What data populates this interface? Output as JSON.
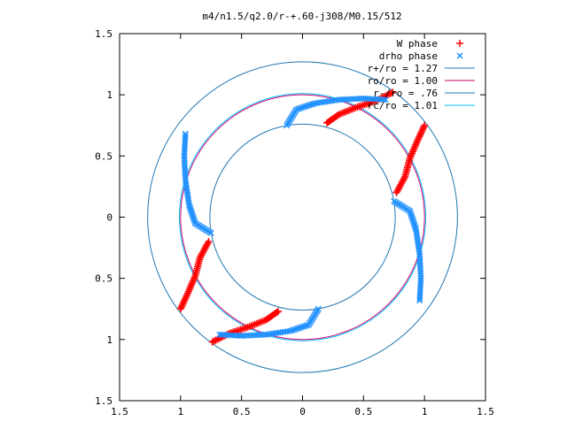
{
  "chart_data": {
    "type": "scatter",
    "title": "m4/n1.5/q2.0/r-+.60-j308/M0.15/512",
    "xlim": [
      -1.5,
      1.5
    ],
    "ylim": [
      -1.5,
      1.5
    ],
    "x_ticks": [
      -1.5,
      -1,
      -0.5,
      0,
      0.5,
      1,
      1.5
    ],
    "y_ticks": [
      -1.5,
      -1,
      -0.5,
      0,
      0.5,
      1,
      1.5
    ],
    "x_tick_labels": [
      "1.5",
      "1",
      "0.5",
      "0",
      "0.5",
      "1",
      "1.5"
    ],
    "y_tick_labels": [
      "1.5",
      "1",
      "0.5",
      "0",
      "0.5",
      "1",
      "1.5"
    ],
    "grid": false,
    "legend_position": "top-right",
    "colors": {
      "w_phase": "#ff0000",
      "drho_phase": "#1e90ff",
      "r_plus": "#1f77b4",
      "r_o": "#cc0066",
      "r_minus": "#1f77b4",
      "r_c": "#00bfff"
    },
    "series": [
      {
        "name": "W phase",
        "kind": "points",
        "marker": "+",
        "points": [
          [
            0.74,
            1.02
          ],
          [
            0.6,
            0.95
          ],
          [
            0.45,
            0.9
          ],
          [
            0.3,
            0.84
          ],
          [
            0.2,
            0.77
          ],
          [
            -0.74,
            -1.02
          ],
          [
            -0.6,
            -0.95
          ],
          [
            -0.45,
            -0.9
          ],
          [
            -0.3,
            -0.84
          ],
          [
            -0.2,
            -0.77
          ],
          [
            1.0,
            0.75
          ],
          [
            0.94,
            0.62
          ],
          [
            0.88,
            0.48
          ],
          [
            0.84,
            0.33
          ],
          [
            0.77,
            0.2
          ],
          [
            -1.0,
            -0.75
          ],
          [
            -0.94,
            -0.62
          ],
          [
            -0.88,
            -0.48
          ],
          [
            -0.84,
            -0.33
          ],
          [
            -0.77,
            -0.2
          ]
        ]
      },
      {
        "name": "drho phase",
        "kind": "points",
        "marker": "x",
        "points": [
          [
            -0.13,
            0.75
          ],
          [
            -0.05,
            0.88
          ],
          [
            0.1,
            0.93
          ],
          [
            0.3,
            0.96
          ],
          [
            0.5,
            0.97
          ],
          [
            0.68,
            0.96
          ],
          [
            0.13,
            -0.75
          ],
          [
            0.05,
            -0.88
          ],
          [
            -0.1,
            -0.93
          ],
          [
            -0.3,
            -0.96
          ],
          [
            -0.5,
            -0.97
          ],
          [
            -0.68,
            -0.96
          ],
          [
            0.75,
            0.13
          ],
          [
            0.88,
            0.05
          ],
          [
            0.93,
            -0.1
          ],
          [
            0.96,
            -0.3
          ],
          [
            0.97,
            -0.5
          ],
          [
            0.96,
            -0.68
          ],
          [
            -0.75,
            -0.13
          ],
          [
            -0.88,
            -0.05
          ],
          [
            -0.93,
            0.1
          ],
          [
            -0.96,
            0.3
          ],
          [
            -0.97,
            0.5
          ],
          [
            -0.96,
            0.68
          ]
        ]
      },
      {
        "name": "r+/ro = 1.27",
        "kind": "circle",
        "radius": 1.27
      },
      {
        "name": "ro/ro = 1.00",
        "kind": "circle",
        "radius": 1.0
      },
      {
        "name": "r-/ro = .76",
        "kind": "circle",
        "radius": 0.76
      },
      {
        "name": "rc/ro = 1.01",
        "kind": "circle",
        "radius": 1.01
      }
    ]
  }
}
